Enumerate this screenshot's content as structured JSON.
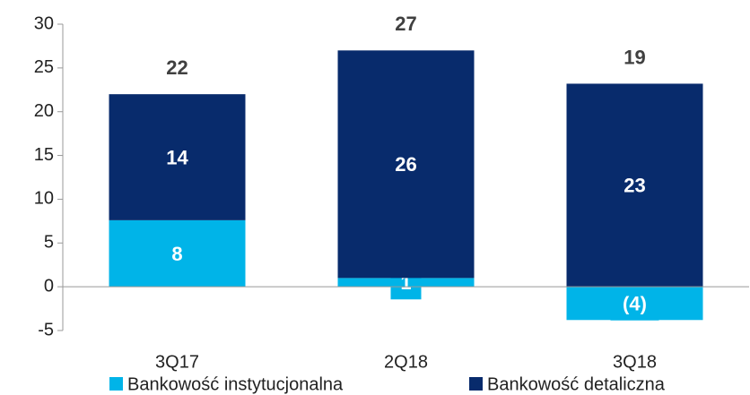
{
  "chart_data": {
    "type": "stacked_bar",
    "categories": [
      "3Q17",
      "2Q18",
      "3Q18"
    ],
    "series": [
      {
        "name": "Bankowość instytucjonalna",
        "color": "#00b4e8",
        "values": [
          7.6,
          1.0,
          -3.8
        ],
        "value_labels": [
          "8",
          "1",
          "(4)"
        ]
      },
      {
        "name": "Bankowość detaliczna",
        "color": "#082b6c",
        "values": [
          14.4,
          26.0,
          23.2
        ],
        "value_labels": [
          "14",
          "26",
          "23"
        ]
      }
    ],
    "total_labels": [
      "22",
      "27",
      "19"
    ],
    "ylim": [
      -5,
      30
    ],
    "yticks": [
      -5,
      0,
      5,
      10,
      15,
      20,
      25,
      30
    ],
    "legend": "bottom"
  }
}
